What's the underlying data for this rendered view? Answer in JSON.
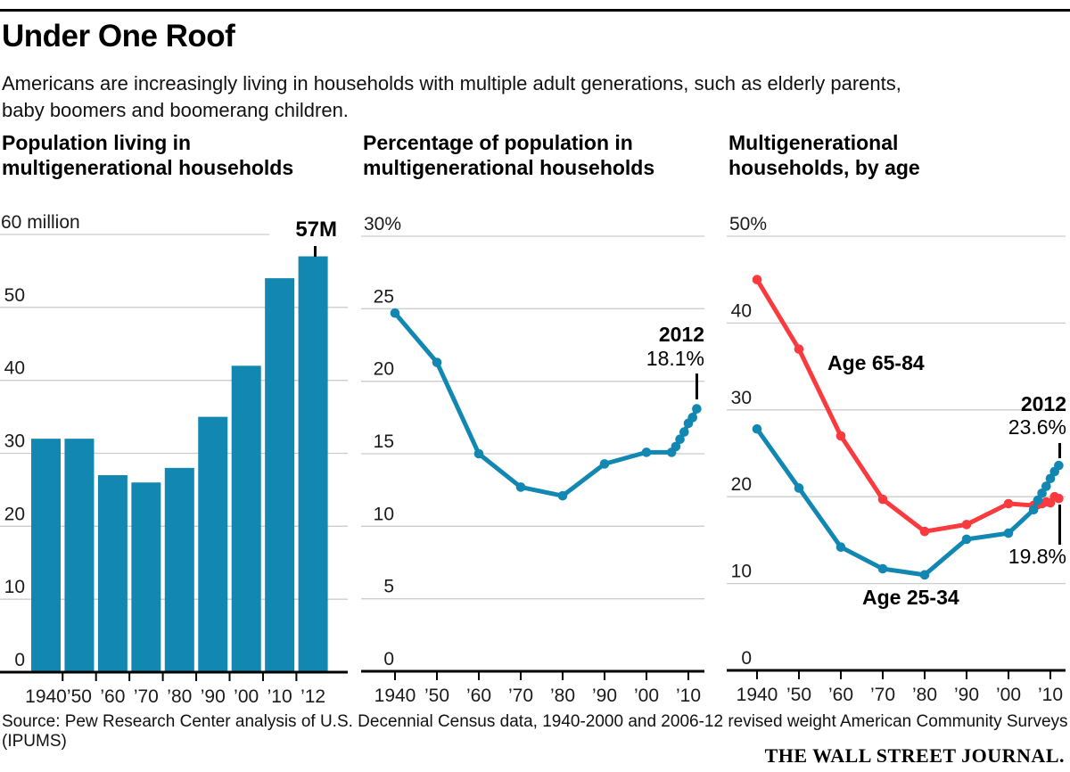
{
  "header": {
    "title": "Under One Roof",
    "subtitle": "Americans are increasingly living in households with multiple adult generations, such as elderly parents,\nbaby boomers and boomerang children."
  },
  "colors": {
    "teal": "#1187B2",
    "red": "#F93B40",
    "gridline": "#CCCCCC",
    "axis": "#000000"
  },
  "chart_data": [
    {
      "type": "bar",
      "title": "Population living in\nmultigenerational households",
      "categories": [
        "1940",
        "’50",
        "’60",
        "’70",
        "’80",
        "’90",
        "’00",
        "’10",
        "’12"
      ],
      "values": [
        32,
        32,
        27,
        26,
        28,
        35,
        42,
        54,
        57
      ],
      "ylim": [
        0,
        60
      ],
      "yticks": [
        {
          "v": 60,
          "label": "60 million"
        },
        {
          "v": 50,
          "label": "50"
        },
        {
          "v": 40,
          "label": "40"
        },
        {
          "v": 30,
          "label": "30"
        },
        {
          "v": 20,
          "label": "20"
        },
        {
          "v": 10,
          "label": "10"
        },
        {
          "v": 0,
          "label": "0"
        }
      ],
      "annotation": {
        "text": "57M",
        "category": "’12"
      },
      "color": "#1187B2",
      "grid": true
    },
    {
      "type": "line",
      "title": "Percentage of population in\nmultigenerational households",
      "x": [
        1940,
        1950,
        1960,
        1970,
        1980,
        1990,
        2000,
        2006,
        2007,
        2008,
        2009,
        2010,
        2011,
        2012
      ],
      "values": [
        24.7,
        21.3,
        15.0,
        12.7,
        12.1,
        14.3,
        15.1,
        15.1,
        15.5,
        16.0,
        16.5,
        17.1,
        17.5,
        18.1
      ],
      "ylim": [
        0,
        30
      ],
      "yticks": [
        {
          "v": 30,
          "label": "30%"
        },
        {
          "v": 25,
          "label": "25"
        },
        {
          "v": 20,
          "label": "20"
        },
        {
          "v": 15,
          "label": "15"
        },
        {
          "v": 10,
          "label": "10"
        },
        {
          "v": 5,
          "label": "5"
        },
        {
          "v": 0,
          "label": "0"
        }
      ],
      "xticks": [
        {
          "year": 1940,
          "label": "1940"
        },
        {
          "year": 1950,
          "label": "’50"
        },
        {
          "year": 1960,
          "label": "’60"
        },
        {
          "year": 1970,
          "label": "’70"
        },
        {
          "year": 1980,
          "label": "’80"
        },
        {
          "year": 1990,
          "label": "’90"
        },
        {
          "year": 2000,
          "label": "’00"
        },
        {
          "year": 2010,
          "label": "’10"
        }
      ],
      "annotation": {
        "year": "2012",
        "value": "18.1%"
      },
      "color": "#1187B2",
      "grid": true
    },
    {
      "type": "line",
      "title": "Multigenerational\nhouseholds, by age",
      "x": [
        1940,
        1950,
        1960,
        1970,
        1980,
        1990,
        2000,
        2006,
        2007,
        2008,
        2009,
        2010,
        2011,
        2012
      ],
      "series": [
        {
          "name": "Age 65-84",
          "color": "#F93B40",
          "values": [
            45,
            37,
            27,
            19.7,
            16,
            16.8,
            19.2,
            19.0,
            19.1,
            19.2,
            19.4,
            19.3,
            20.0,
            19.8
          ]
        },
        {
          "name": "Age 25-34",
          "color": "#1187B2",
          "values": [
            27.8,
            21,
            14.2,
            11.7,
            11,
            15.1,
            15.8,
            18.5,
            19.6,
            20.4,
            21.2,
            22.1,
            22.9,
            23.6
          ]
        }
      ],
      "ylim": [
        0,
        50
      ],
      "yticks": [
        {
          "v": 50,
          "label": "50%"
        },
        {
          "v": 40,
          "label": "40"
        },
        {
          "v": 30,
          "label": "30"
        },
        {
          "v": 20,
          "label": "20"
        },
        {
          "v": 10,
          "label": "10"
        },
        {
          "v": 0,
          "label": "0"
        }
      ],
      "xticks": [
        {
          "year": 1940,
          "label": "1940"
        },
        {
          "year": 1950,
          "label": "’50"
        },
        {
          "year": 1960,
          "label": "’60"
        },
        {
          "year": 1970,
          "label": "’70"
        },
        {
          "year": 1980,
          "label": "’80"
        },
        {
          "year": 1990,
          "label": "’90"
        },
        {
          "year": 2000,
          "label": "’00"
        },
        {
          "year": 2010,
          "label": "’10"
        }
      ],
      "annotations": {
        "year": "2012",
        "age2534": "23.6%",
        "age6584": "19.8%"
      },
      "grid": true
    }
  ],
  "footer": {
    "source": "Source: Pew Research Center analysis of U.S. Decennial Census data, 1940-2000 and 2006-12 revised weight American Community Surveys (IPUMS)",
    "brand": "THE WALL STREET JOURNAL."
  }
}
